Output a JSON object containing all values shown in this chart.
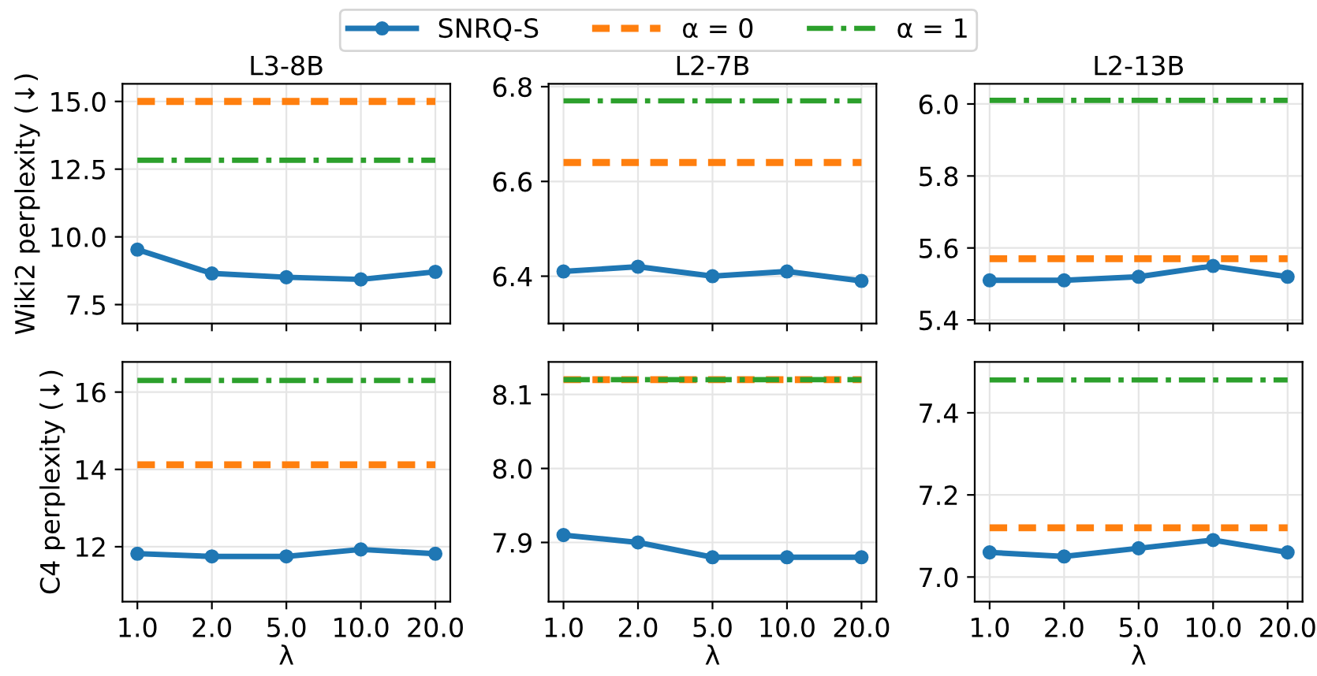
{
  "chart_data": [
    {
      "type": "line",
      "title": "L3-8B",
      "ylabel": "Wiki2 perplexity (↓)",
      "categories": [
        "1.0",
        "2.0",
        "5.0",
        "10.0",
        "20.0"
      ],
      "ylim": [
        6.8,
        15.65
      ],
      "yticks": [
        7.5,
        {
          "value": 10,
          "label": "10.0"
        },
        12.5,
        {
          "value": 15,
          "label": "15.0"
        }
      ],
      "grid": true,
      "tick_labels": "y",
      "legend": "top",
      "series": [
        {
          "name": "SNRQ-S",
          "color": "#1f77b4",
          "marker": "circle",
          "values": [
            9.53,
            8.65,
            8.51,
            8.43,
            8.71
          ]
        },
        {
          "name": "α = 0",
          "color": "#ff7f0e",
          "line_style": "dashed",
          "values": [
            15.0,
            15.0,
            15.0,
            15.0,
            15.0
          ]
        },
        {
          "name": "α = 1",
          "color": "#2ca02c",
          "line_style": "dashdot",
          "values": [
            12.83,
            12.83,
            12.83,
            12.83,
            12.83
          ]
        }
      ]
    },
    {
      "type": "line",
      "title": "L2-7B",
      "categories": [
        "1.0",
        "2.0",
        "5.0",
        "10.0",
        "20.0"
      ],
      "ylim": [
        6.3,
        6.806
      ],
      "yticks": [
        6.4,
        6.6,
        6.8
      ],
      "grid": true,
      "tick_labels": "y",
      "series": [
        {
          "color": "#1f77b4",
          "marker": "circle",
          "values": [
            6.41,
            6.42,
            6.4,
            6.41,
            6.39
          ]
        },
        {
          "color": "#ff7f0e",
          "line_style": "dashed",
          "values": [
            6.64,
            6.64,
            6.64,
            6.64,
            6.64
          ]
        },
        {
          "color": "#2ca02c",
          "line_style": "dashdot",
          "values": [
            6.77,
            6.77,
            6.77,
            6.77,
            6.77
          ]
        }
      ]
    },
    {
      "type": "line",
      "title": "L2-13B",
      "categories": [
        "1.0",
        "2.0",
        "5.0",
        "10.0",
        "20.0"
      ],
      "ylim": [
        5.39,
        6.056
      ],
      "yticks": [
        5.4,
        5.6,
        5.8,
        {
          "value": 6,
          "label": "6.0"
        }
      ],
      "grid": true,
      "tick_labels": "y",
      "series": [
        {
          "color": "#1f77b4",
          "marker": "circle",
          "values": [
            5.51,
            5.51,
            5.52,
            5.55,
            5.52
          ]
        },
        {
          "color": "#ff7f0e",
          "line_style": "dashed",
          "values": [
            5.57,
            5.57,
            5.57,
            5.57,
            5.57
          ]
        },
        {
          "color": "#2ca02c",
          "line_style": "dashdot",
          "values": [
            6.01,
            6.01,
            6.01,
            6.01,
            6.01
          ]
        }
      ]
    },
    {
      "type": "line",
      "xlabel": "λ",
      "ylabel": "C4 perplexity (↓)",
      "categories": [
        "1.0",
        "2.0",
        "5.0",
        "10.0",
        "20.0"
      ],
      "ylim": [
        10.58,
        16.78
      ],
      "yticks": [
        12,
        14,
        16
      ],
      "grid": true,
      "series": [
        {
          "color": "#1f77b4",
          "marker": "circle",
          "values": [
            11.82,
            11.75,
            11.75,
            11.93,
            11.82
          ]
        },
        {
          "color": "#ff7f0e",
          "line_style": "dashed",
          "values": [
            14.12,
            14.12,
            14.12,
            14.12,
            14.12
          ]
        },
        {
          "color": "#2ca02c",
          "line_style": "dashdot",
          "values": [
            16.3,
            16.3,
            16.3,
            16.3,
            16.3
          ]
        }
      ]
    },
    {
      "type": "line",
      "xlabel": "λ",
      "categories": [
        "1.0",
        "2.0",
        "5.0",
        "10.0",
        "20.0"
      ],
      "ylim": [
        7.82,
        8.144
      ],
      "yticks": [
        7.9,
        {
          "value": 8,
          "label": "8.0"
        },
        8.1
      ],
      "grid": true,
      "series": [
        {
          "color": "#1f77b4",
          "marker": "circle",
          "values": [
            7.91,
            7.9,
            7.88,
            7.88,
            7.88
          ]
        },
        {
          "color": "#ff7f0e",
          "line_style": "dashed",
          "values": [
            8.12,
            8.12,
            8.12,
            8.12,
            8.12
          ]
        },
        {
          "color": "#2ca02c",
          "line_style": "dashdot",
          "values": [
            8.12,
            8.12,
            8.12,
            8.12,
            8.12
          ]
        }
      ]
    },
    {
      "type": "line",
      "xlabel": "λ",
      "categories": [
        "1.0",
        "2.0",
        "5.0",
        "10.0",
        "20.0"
      ],
      "ylim": [
        6.94,
        7.524
      ],
      "yticks": [
        {
          "value": 7,
          "label": "7.0"
        },
        7.2,
        7.4
      ],
      "grid": true,
      "series": [
        {
          "color": "#1f77b4",
          "marker": "circle",
          "values": [
            7.06,
            7.05,
            7.07,
            7.09,
            7.06
          ]
        },
        {
          "color": "#ff7f0e",
          "line_style": "dashed",
          "values": [
            7.12,
            7.12,
            7.12,
            7.12,
            7.12
          ]
        },
        {
          "color": "#2ca02c",
          "line_style": "dashdot",
          "values": [
            7.48,
            7.48,
            7.48,
            7.48,
            7.48
          ]
        }
      ]
    }
  ]
}
